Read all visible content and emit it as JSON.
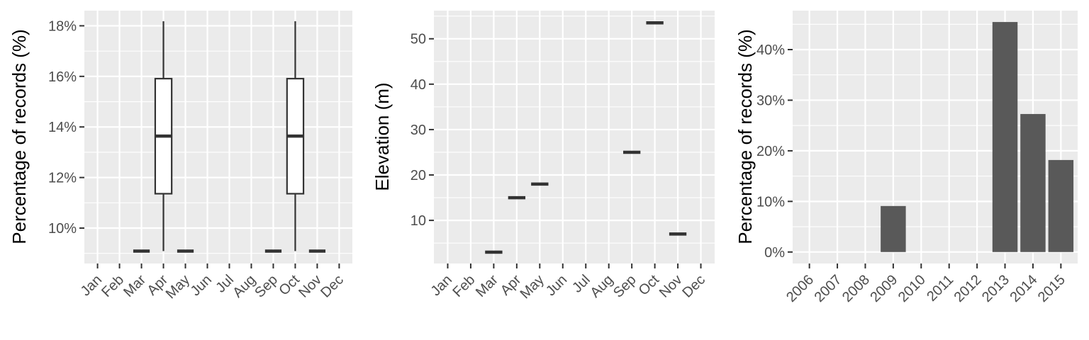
{
  "chart_data": [
    {
      "type": "boxplot",
      "ylabel": "Percentage of records (%)",
      "categories": [
        "Jan",
        "Feb",
        "Mar",
        "Apr",
        "May",
        "Jun",
        "Jul",
        "Aug",
        "Sep",
        "Oct",
        "Nov",
        "Dec"
      ],
      "ylim": [
        8.6,
        18.6
      ],
      "yticks": [
        10,
        12,
        14,
        16,
        18
      ],
      "ytick_labels": [
        "10%",
        "12%",
        "14%",
        "16%",
        "18%"
      ],
      "boxes": [
        {
          "category": "Mar",
          "min": 9.09,
          "q1": 9.09,
          "median": 9.09,
          "q3": 9.09,
          "max": 9.09
        },
        {
          "category": "Apr",
          "min": 9.09,
          "q1": 11.36,
          "median": 13.64,
          "q3": 15.91,
          "max": 18.18
        },
        {
          "category": "May",
          "min": 9.09,
          "q1": 9.09,
          "median": 9.09,
          "q3": 9.09,
          "max": 9.09
        },
        {
          "category": "Sep",
          "min": 9.09,
          "q1": 9.09,
          "median": 9.09,
          "q3": 9.09,
          "max": 9.09
        },
        {
          "category": "Oct",
          "min": 9.09,
          "q1": 11.36,
          "median": 13.64,
          "q3": 15.91,
          "max": 18.18
        },
        {
          "category": "Nov",
          "min": 9.09,
          "q1": 9.09,
          "median": 9.09,
          "q3": 9.09,
          "max": 9.09
        }
      ],
      "grid": true
    },
    {
      "type": "boxplot",
      "ylabel": "Elevation (m)",
      "categories": [
        "Jan",
        "Feb",
        "Mar",
        "Apr",
        "May",
        "Jun",
        "Jul",
        "Aug",
        "Sep",
        "Oct",
        "Nov",
        "Dec"
      ],
      "ylim": [
        0.5,
        56.2
      ],
      "yticks": [
        10,
        20,
        30,
        40,
        50
      ],
      "ytick_labels": [
        "10",
        "20",
        "30",
        "40",
        "50"
      ],
      "boxes": [
        {
          "category": "Mar",
          "min": 3,
          "q1": 3,
          "median": 3,
          "q3": 3,
          "max": 3
        },
        {
          "category": "Apr",
          "min": 15,
          "q1": 15,
          "median": 15,
          "q3": 15,
          "max": 15
        },
        {
          "category": "May",
          "min": 18,
          "q1": 18,
          "median": 18,
          "q3": 18,
          "max": 18
        },
        {
          "category": "Sep",
          "min": 25,
          "q1": 25,
          "median": 25,
          "q3": 25,
          "max": 25
        },
        {
          "category": "Oct",
          "min": 53.5,
          "q1": 53.5,
          "median": 53.5,
          "q3": 53.5,
          "max": 53.5
        },
        {
          "category": "Nov",
          "min": 7,
          "q1": 7,
          "median": 7,
          "q3": 7,
          "max": 7
        }
      ],
      "grid": true
    },
    {
      "type": "bar",
      "ylabel": "Percentage of records (%)",
      "categories": [
        "2006",
        "2007",
        "2008",
        "2009",
        "2010",
        "2011",
        "2012",
        "2013",
        "2014",
        "2015"
      ],
      "values": [
        0,
        0,
        0,
        9.09,
        0,
        0,
        0,
        45.45,
        27.27,
        18.18
      ],
      "ylim": [
        -2.27,
        47.7
      ],
      "yticks": [
        0,
        10,
        20,
        30,
        40
      ],
      "ytick_labels": [
        "0%",
        "10%",
        "20%",
        "30%",
        "40%"
      ],
      "bar_color": "#595959",
      "grid": true
    }
  ]
}
